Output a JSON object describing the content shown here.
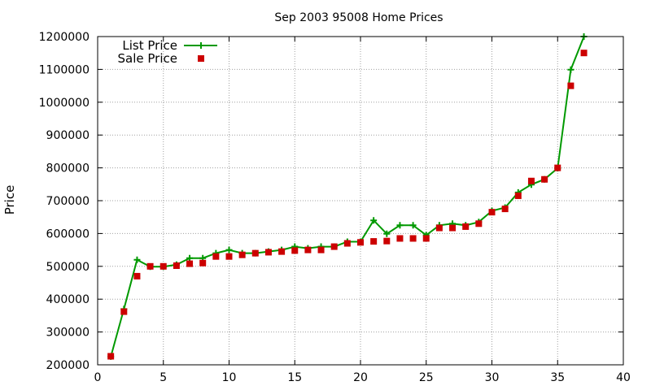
{
  "chart_data": {
    "type": "line",
    "title": "Sep 2003 95008 Home Prices",
    "xlabel": "",
    "ylabel": "Price",
    "xlim": [
      0,
      40
    ],
    "ylim": [
      200000,
      1200000
    ],
    "xticks": [
      0,
      5,
      10,
      15,
      20,
      25,
      30,
      35,
      40
    ],
    "yticks": [
      200000,
      300000,
      400000,
      500000,
      600000,
      700000,
      800000,
      900000,
      1000000,
      1100000,
      1200000
    ],
    "grid": true,
    "legend_position": "top-left",
    "series": [
      {
        "name": "List Price",
        "style": "line-with-plus-markers",
        "color": "#009900",
        "x": [
          1,
          2,
          3,
          4,
          5,
          6,
          7,
          8,
          9,
          10,
          11,
          12,
          13,
          14,
          15,
          16,
          17,
          18,
          19,
          20,
          21,
          22,
          23,
          24,
          25,
          26,
          27,
          28,
          29,
          30,
          31,
          32,
          33,
          34,
          35,
          36,
          37
        ],
        "y": [
          225000,
          370000,
          520000,
          499000,
          499000,
          505000,
          525000,
          525000,
          540000,
          550000,
          540000,
          540000,
          545000,
          550000,
          560000,
          555000,
          560000,
          560000,
          575000,
          575000,
          640000,
          599000,
          625000,
          625000,
          595000,
          625000,
          630000,
          625000,
          635000,
          669000,
          679000,
          725000,
          749000,
          765000,
          799000,
          1099000,
          1200000
        ]
      },
      {
        "name": "Sale Price",
        "style": "square-markers",
        "color": "#cc0000",
        "x": [
          1,
          2,
          3,
          4,
          5,
          6,
          7,
          8,
          9,
          10,
          11,
          12,
          13,
          14,
          15,
          16,
          17,
          18,
          19,
          20,
          21,
          22,
          23,
          24,
          25,
          26,
          27,
          28,
          29,
          30,
          31,
          32,
          33,
          34,
          35,
          36,
          37
        ],
        "y": [
          226000,
          362000,
          470000,
          500000,
          500000,
          502000,
          508000,
          510000,
          530000,
          530000,
          535000,
          540000,
          543000,
          545000,
          548000,
          550000,
          550000,
          560000,
          570000,
          573000,
          576000,
          577000,
          585000,
          585000,
          585000,
          617000,
          617000,
          621000,
          630000,
          665000,
          675000,
          715000,
          760000,
          765000,
          800000,
          1050000,
          1150000
        ]
      }
    ]
  }
}
